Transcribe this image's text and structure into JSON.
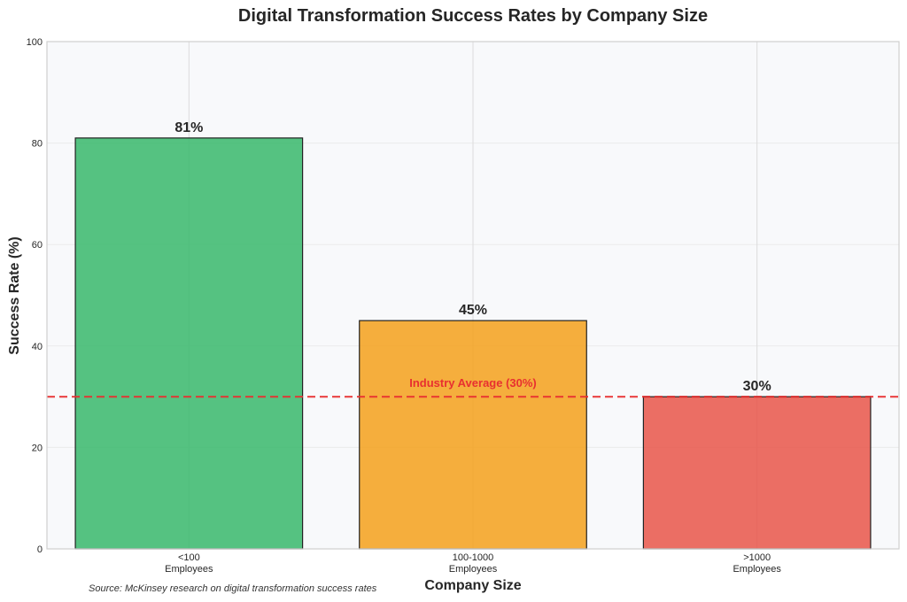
{
  "chart_data": {
    "type": "bar",
    "title": "Digital Transformation Success Rates by Company Size",
    "xlabel": "Company Size",
    "ylabel": "Success Rate (%)",
    "categories": [
      [
        "<100",
        "Employees"
      ],
      [
        "100-1000",
        "Employees"
      ],
      [
        ">1000",
        "Employees"
      ]
    ],
    "values": [
      81,
      45,
      30
    ],
    "value_labels": [
      "81%",
      "45%",
      "30%"
    ],
    "bar_colors": [
      "#3dba6f",
      "#f4a322",
      "#e85a4f"
    ],
    "ylim": [
      0,
      100
    ],
    "yticks": [
      0,
      20,
      40,
      60,
      80,
      100
    ],
    "grid": true,
    "reference_line": {
      "value": 30,
      "label": "Industry Average (30%)",
      "color": "#e83030",
      "style": "dashed"
    },
    "source_note": "Source: McKinsey research on digital transformation success rates"
  },
  "colors": {
    "plot_background": "#f8f9fb",
    "grid": "#dcdcdc",
    "axes_border": "#cfcfcf",
    "bar_edge": "#222222"
  }
}
